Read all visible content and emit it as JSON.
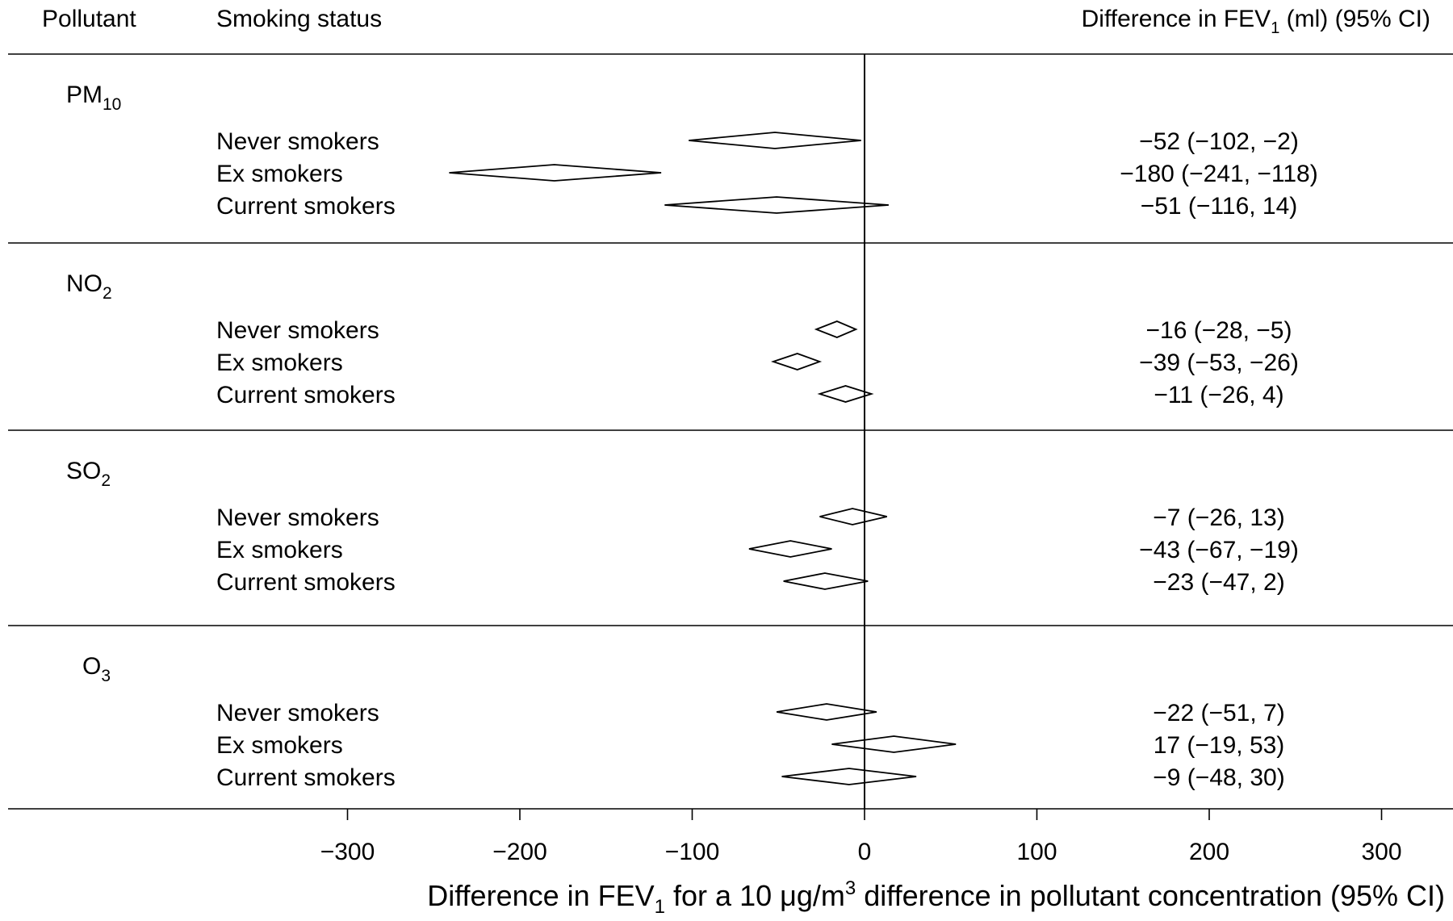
{
  "header": {
    "pollutant": "Pollutant",
    "smoking_status": "Smoking status",
    "difference": {
      "main": "Difference in FEV",
      "sub": "1",
      "tail": " (ml) (95% CI)"
    }
  },
  "x_axis": {
    "title": {
      "part1": "Difference in FEV",
      "sub1": "1",
      "part2": " for a 10 μg/m",
      "sup": "3",
      "part3": " difference in pollutant concentration (95% CI)"
    }
  },
  "chart_data": {
    "type": "forest",
    "xlim": [
      -400,
      330
    ],
    "ticks": [
      -300,
      -200,
      -100,
      0,
      100,
      200,
      300
    ],
    "tick_labels": [
      "−300",
      "−200",
      "−100",
      "0",
      "100",
      "200",
      "300"
    ],
    "reference_line": 0,
    "groups": [
      {
        "pollutant": {
          "base": "PM",
          "sub": "10"
        },
        "rows": [
          {
            "label": "Never smokers",
            "estimate": -52,
            "lower": -102,
            "upper": -2,
            "text": "−52 (−102, −2)"
          },
          {
            "label": "Ex smokers",
            "estimate": -180,
            "lower": -241,
            "upper": -118,
            "text": "−180 (−241, −118)"
          },
          {
            "label": "Current smokers",
            "estimate": -51,
            "lower": -116,
            "upper": 14,
            "text": "−51 (−116, 14)"
          }
        ]
      },
      {
        "pollutant": {
          "base": "NO",
          "sub": "2"
        },
        "rows": [
          {
            "label": "Never smokers",
            "estimate": -16,
            "lower": -28,
            "upper": -5,
            "text": "−16 (−28, −5)"
          },
          {
            "label": "Ex smokers",
            "estimate": -39,
            "lower": -53,
            "upper": -26,
            "text": "−39 (−53, −26)"
          },
          {
            "label": "Current smokers",
            "estimate": -11,
            "lower": -26,
            "upper": 4,
            "text": "−11 (−26, 4)"
          }
        ]
      },
      {
        "pollutant": {
          "base": "SO",
          "sub": "2"
        },
        "rows": [
          {
            "label": "Never smokers",
            "estimate": -7,
            "lower": -26,
            "upper": 13,
            "text": "−7 (−26, 13)"
          },
          {
            "label": "Ex smokers",
            "estimate": -43,
            "lower": -67,
            "upper": -19,
            "text": "−43 (−67, −19)"
          },
          {
            "label": "Current smokers",
            "estimate": -23,
            "lower": -47,
            "upper": 2,
            "text": "−23 (−47, 2)"
          }
        ]
      },
      {
        "pollutant": {
          "base": "O",
          "sub": "3"
        },
        "rows": [
          {
            "label": "Never smokers",
            "estimate": -22,
            "lower": -51,
            "upper": 7,
            "text": "−22 (−51, 7)"
          },
          {
            "label": "Ex smokers",
            "estimate": 17,
            "lower": -19,
            "upper": 53,
            "text": "17 (−19, 53)"
          },
          {
            "label": "Current smokers",
            "estimate": -9,
            "lower": -48,
            "upper": 30,
            "text": "−9 (−48, 30)"
          }
        ]
      }
    ]
  }
}
